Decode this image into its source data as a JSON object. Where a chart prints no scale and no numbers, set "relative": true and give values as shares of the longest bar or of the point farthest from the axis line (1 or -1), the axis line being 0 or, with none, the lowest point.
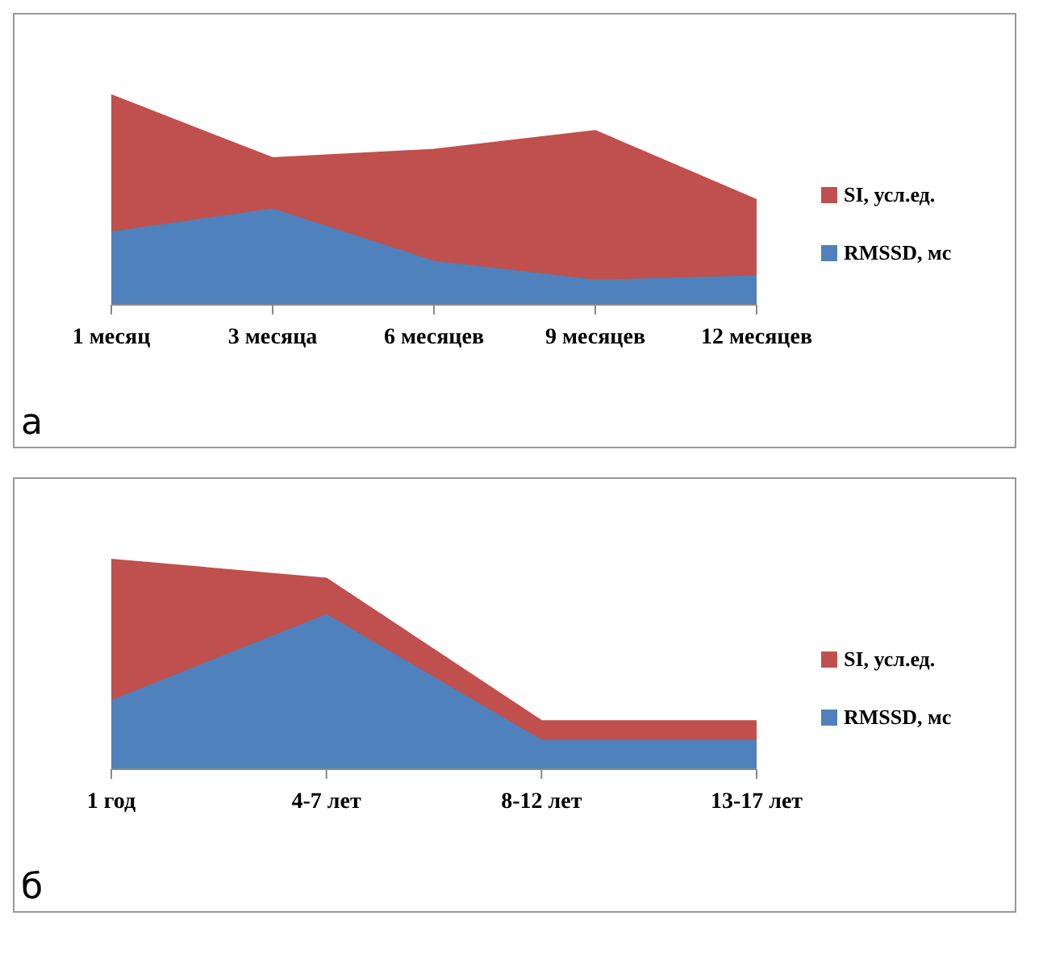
{
  "chart_data": [
    {
      "type": "area",
      "relative": true,
      "stacked": true,
      "legend": "right",
      "categories": [
        "1 месяц",
        "3 месяца",
        "6 месяцев",
        "9 месяцев",
        "12 месяцев"
      ],
      "annotations": [
        "а"
      ],
      "series": [
        {
          "name": "RMSSD, мс",
          "color": "#4f81bd",
          "values": [
            0.35,
            0.46,
            0.21,
            0.12,
            0.14
          ]
        },
        {
          "name": "SI, усл.ед.",
          "color": "#c0504d",
          "values": [
            0.65,
            0.24,
            0.53,
            0.71,
            0.36
          ]
        }
      ]
    },
    {
      "type": "area",
      "relative": true,
      "stacked": true,
      "legend": "right",
      "categories": [
        "1 год",
        "4-7 лет",
        "8-12 лет",
        "13-17 лет"
      ],
      "annotations": [
        "б"
      ],
      "series": [
        {
          "name": "RMSSD, мс",
          "color": "#4f81bd",
          "values": [
            0.33,
            0.74,
            0.14,
            0.14
          ]
        },
        {
          "name": "SI, усл.ед.",
          "color": "#c0504d",
          "values": [
            0.67,
            0.17,
            0.09,
            0.09
          ]
        }
      ]
    }
  ]
}
